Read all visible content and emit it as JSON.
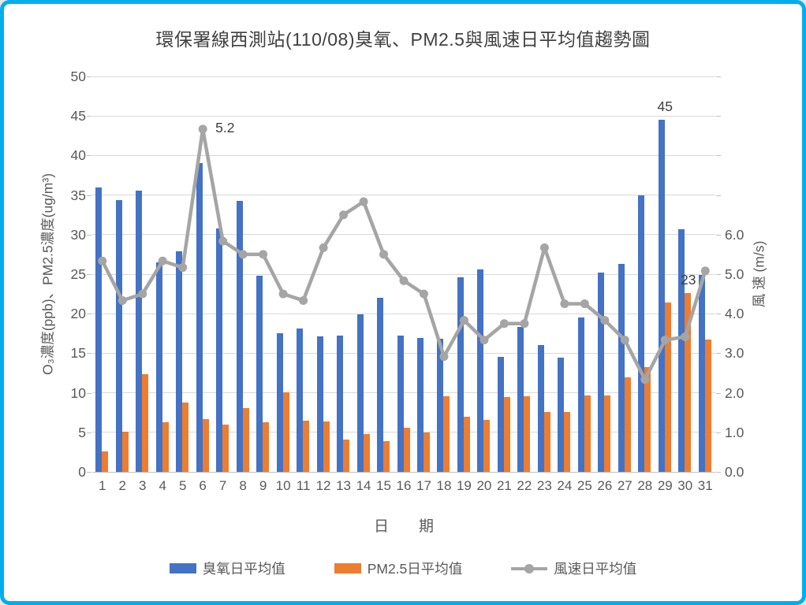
{
  "frame": {
    "border_color": "#00AEEF",
    "background": "#FFFFFF"
  },
  "title": "環保署線西測站(110/08)臭氧、PM2.5與風速日平均值趨勢圖",
  "chart_data": {
    "type": "combo_bar_line",
    "categories": [
      1,
      2,
      3,
      4,
      5,
      6,
      7,
      8,
      9,
      10,
      11,
      12,
      13,
      14,
      15,
      16,
      17,
      18,
      19,
      20,
      21,
      22,
      23,
      24,
      25,
      26,
      27,
      28,
      29,
      30,
      31
    ],
    "x_axis_title": "日　　期",
    "y_left": {
      "title": "O₃濃度(ppb)、PM2.5濃度(ug/m³)",
      "min": 0,
      "max": 50,
      "step": 5,
      "tick_labels": [
        "0",
        "5",
        "10",
        "15",
        "20",
        "25",
        "30",
        "35",
        "40",
        "45",
        "50"
      ]
    },
    "y_right": {
      "title": "風 速 (m/s)",
      "min": 0.0,
      "max": 6.0,
      "step": 1.0,
      "tick_labels": [
        "0.0",
        "1.0",
        "2.0",
        "3.0",
        "4.0",
        "5.0",
        "6.0"
      ]
    },
    "series": [
      {
        "name": "臭氧日平均值",
        "type": "bar",
        "axis": "left",
        "color": "#4472C4",
        "values": [
          36,
          34.4,
          35.6,
          26.5,
          27.9,
          39,
          30.8,
          34.3,
          24.8,
          17.5,
          18.1,
          17.1,
          17.2,
          19.9,
          22,
          17.2,
          16.9,
          16.8,
          24.6,
          25.6,
          14.5,
          18.3,
          16,
          14.4,
          19.5,
          25.2,
          26.3,
          35,
          44.5,
          30.7,
          24.9
        ]
      },
      {
        "name": "PM2.5日平均值",
        "type": "bar",
        "axis": "left",
        "color": "#ED7D31",
        "values": [
          2.6,
          5.1,
          12.4,
          6.3,
          8.8,
          6.7,
          6,
          8.1,
          6.3,
          10.1,
          6.5,
          6.4,
          4.1,
          4.8,
          3.9,
          5.6,
          5,
          9.6,
          7,
          6.6,
          9.5,
          9.6,
          7.6,
          7.6,
          9.7,
          9.7,
          12,
          13.2,
          21.4,
          22.6,
          16.7
        ]
      },
      {
        "name": "風速日平均值",
        "type": "line",
        "axis": "right",
        "color": "#A5A5A5",
        "values": [
          3.2,
          2.6,
          2.7,
          3.2,
          3.1,
          5.2,
          3.5,
          3.3,
          3.3,
          2.7,
          2.6,
          3.4,
          3.9,
          4.1,
          3.3,
          2.9,
          2.7,
          1.75,
          2.3,
          2,
          2.25,
          2.25,
          3.4,
          2.55,
          2.55,
          2.3,
          2,
          1.4,
          2,
          2.05,
          3.05
        ]
      }
    ],
    "data_labels": [
      {
        "series_index": 2,
        "day": 6,
        "text": "5.2"
      },
      {
        "series_index": 0,
        "day": 29,
        "text": "45"
      },
      {
        "series_index": 1,
        "day": 30,
        "text": "23"
      }
    ],
    "gridline_color": "#D9D9D9",
    "axis_text_color": "#595959",
    "legend_position": "bottom",
    "grid": "horizontal"
  }
}
